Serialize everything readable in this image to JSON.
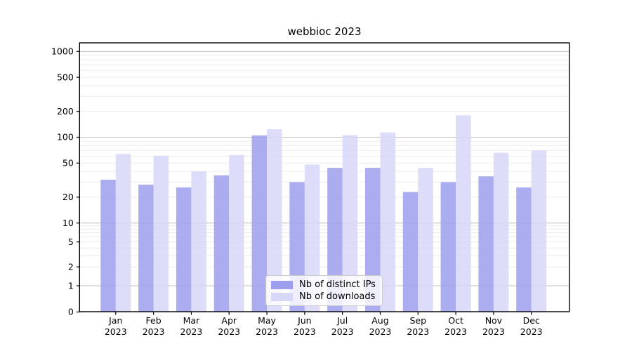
{
  "chart_data": {
    "type": "bar",
    "title": "webbioc 2023",
    "categories": [
      "Jan",
      "Feb",
      "Mar",
      "Apr",
      "May",
      "Jun",
      "Jul",
      "Aug",
      "Sep",
      "Oct",
      "Nov",
      "Dec"
    ],
    "category_year": "2023",
    "series": [
      {
        "name": "Nb of distinct IPs",
        "color": "#9e9eee",
        "values": [
          32,
          28,
          26,
          36,
          105,
          30,
          44,
          44,
          23,
          30,
          35,
          26
        ]
      },
      {
        "name": "Nb of downloads",
        "color": "#d7d7f8",
        "values": [
          64,
          61,
          40,
          62,
          124,
          48,
          106,
          114,
          44,
          180,
          66,
          70
        ]
      }
    ],
    "xlabel": "",
    "ylabel": "",
    "yticks": [
      1000,
      500,
      200,
      100,
      50,
      20,
      10,
      5,
      2,
      1,
      0
    ],
    "ylim": [
      0,
      1300
    ],
    "yscale": "log-with-zero",
    "grid": "on",
    "legend_position": "lower-center",
    "colors": {
      "bar_ips": "#9e9eee",
      "bar_downloads": "#d7d7f8",
      "grid_major": "#c3c3c3",
      "grid_minor": "#ebebeb",
      "axis": "#000000",
      "text": "#000000"
    },
    "bar_opacity": 0.85
  }
}
